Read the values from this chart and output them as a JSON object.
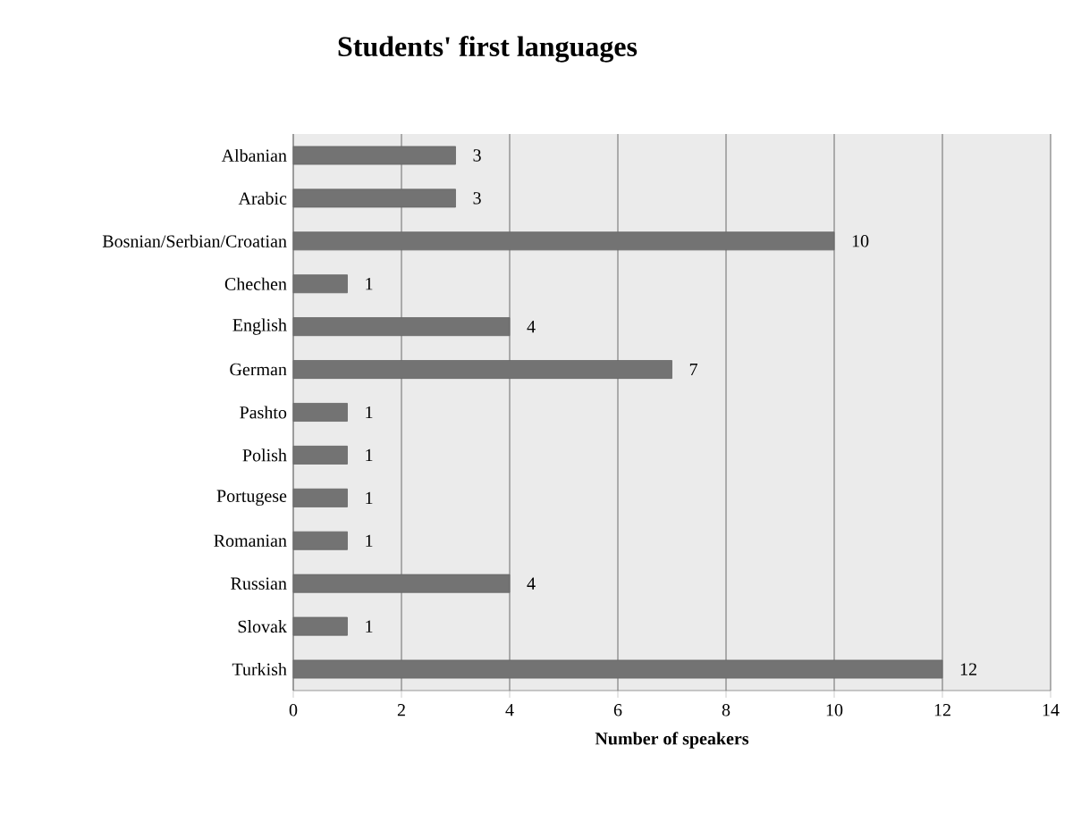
{
  "chart_data": {
    "type": "bar",
    "orientation": "horizontal",
    "title": "Students' first languages",
    "xlabel": "Number of speakers",
    "categories": [
      "Albanian",
      "Arabic",
      "Bosnian/Serbian/Croatian",
      "Chechen",
      "English",
      "German",
      "Pashto",
      "Polish",
      "Portugese",
      "Romanian",
      "Russian",
      "Slovak",
      "Turkish"
    ],
    "values": [
      3,
      3,
      10,
      1,
      4,
      7,
      1,
      1,
      1,
      1,
      4,
      1,
      12
    ],
    "color": "#737373",
    "xlim": [
      0,
      14
    ],
    "xticks": [
      0,
      2,
      4,
      6,
      8,
      10,
      12,
      14
    ],
    "grid": "x",
    "data_labels": true
  }
}
